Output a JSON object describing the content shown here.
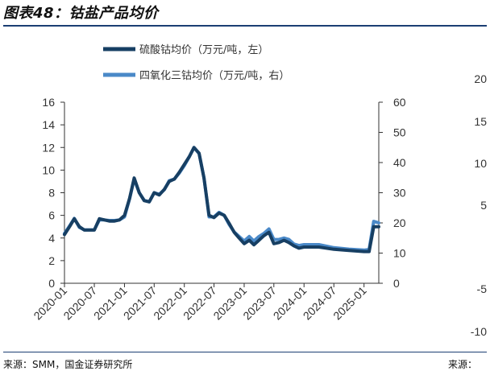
{
  "header": {
    "title": "图表48：钴盐产品均价"
  },
  "footer": {
    "source": "来源：SMM，国金证券研究所",
    "source_right": "来源："
  },
  "stray_axis": {
    "ticks": [
      "20",
      "15",
      "10",
      "5",
      "-5",
      "-10"
    ]
  },
  "chart_data": {
    "type": "line",
    "title": "",
    "legend": {
      "placement": "top-center"
    },
    "grid": false,
    "x_ticks": [
      "2020-01",
      "2020-07",
      "2021-01",
      "2021-07",
      "2022-01",
      "2022-07",
      "2023-01",
      "2023-07",
      "2024-01",
      "2024-07",
      "2025-01"
    ],
    "y_left": {
      "ticks": [
        "0",
        "2",
        "4",
        "6",
        "8",
        "10",
        "12",
        "14",
        "16"
      ],
      "ylim": [
        0,
        16
      ]
    },
    "y_right": {
      "ticks": [
        "0",
        "10",
        "20",
        "30",
        "40",
        "50",
        "60"
      ],
      "ylim": [
        0,
        60
      ]
    },
    "series": [
      {
        "name": "硫酸钴均价（万元/吨，左）",
        "axis": "left",
        "color": "#173f63",
        "points": [
          [
            "2020-01-01",
            4.3
          ],
          [
            "2020-02-01",
            5.0
          ],
          [
            "2020-03-01",
            5.7
          ],
          [
            "2020-04-01",
            5.0
          ],
          [
            "2020-05-01",
            4.7
          ],
          [
            "2020-06-01",
            4.7
          ],
          [
            "2020-07-01",
            4.7
          ],
          [
            "2020-08-01",
            5.7
          ],
          [
            "2020-09-01",
            5.6
          ],
          [
            "2020-10-01",
            5.5
          ],
          [
            "2020-11-01",
            5.5
          ],
          [
            "2020-12-01",
            5.6
          ],
          [
            "2021-01-01",
            6.0
          ],
          [
            "2021-02-01",
            7.5
          ],
          [
            "2021-03-01",
            9.3
          ],
          [
            "2021-04-01",
            8.0
          ],
          [
            "2021-05-01",
            7.3
          ],
          [
            "2021-06-01",
            7.2
          ],
          [
            "2021-07-01",
            8.0
          ],
          [
            "2021-08-01",
            7.8
          ],
          [
            "2021-09-01",
            8.3
          ],
          [
            "2021-10-01",
            9.0
          ],
          [
            "2021-11-01",
            9.2
          ],
          [
            "2021-12-01",
            9.8
          ],
          [
            "2022-01-01",
            10.5
          ],
          [
            "2022-02-01",
            11.2
          ],
          [
            "2022-03-01",
            12.0
          ],
          [
            "2022-04-01",
            11.5
          ],
          [
            "2022-05-01",
            9.3
          ],
          [
            "2022-06-01",
            6.0
          ],
          [
            "2022-07-01",
            5.8
          ],
          [
            "2022-08-01",
            6.2
          ],
          [
            "2022-09-01",
            6.0
          ],
          [
            "2022-10-01",
            5.3
          ],
          [
            "2022-11-01",
            4.5
          ],
          [
            "2022-12-01",
            4.0
          ],
          [
            "2023-01-01",
            3.5
          ],
          [
            "2023-02-01",
            3.8
          ],
          [
            "2023-03-01",
            3.4
          ],
          [
            "2023-04-01",
            3.8
          ],
          [
            "2023-05-01",
            4.2
          ],
          [
            "2023-06-01",
            4.5
          ],
          [
            "2023-07-01",
            3.5
          ],
          [
            "2023-08-01",
            3.6
          ],
          [
            "2023-09-01",
            3.8
          ],
          [
            "2023-10-01",
            3.6
          ],
          [
            "2023-11-01",
            3.3
          ],
          [
            "2023-12-01",
            3.1
          ],
          [
            "2024-01-01",
            3.2
          ],
          [
            "2024-04-01",
            3.2
          ],
          [
            "2024-07-01",
            3.0
          ],
          [
            "2024-10-01",
            2.9
          ],
          [
            "2025-01-01",
            2.8
          ],
          [
            "2025-02-01",
            2.8
          ],
          [
            "2025-03-01",
            5.0
          ],
          [
            "2025-04-01",
            5.0
          ]
        ]
      },
      {
        "name": "四氧化三钴均价（万元/吨，右）",
        "axis": "right",
        "color": "#4a89c8",
        "points": [
          [
            "2020-01-01",
            16.5
          ],
          [
            "2020-02-01",
            19.0
          ],
          [
            "2020-03-01",
            21.5
          ],
          [
            "2020-04-01",
            18.5
          ],
          [
            "2020-05-01",
            17.7
          ],
          [
            "2020-06-01",
            17.7
          ],
          [
            "2020-07-01",
            17.7
          ],
          [
            "2020-08-01",
            21.0
          ],
          [
            "2020-09-01",
            21.0
          ],
          [
            "2020-10-01",
            20.8
          ],
          [
            "2020-11-01",
            20.8
          ],
          [
            "2020-12-01",
            21.0
          ],
          [
            "2021-01-01",
            22.0
          ],
          [
            "2021-02-01",
            28.0
          ],
          [
            "2021-03-01",
            34.5
          ],
          [
            "2021-04-01",
            30.0
          ],
          [
            "2021-05-01",
            27.5
          ],
          [
            "2021-06-01",
            27.0
          ],
          [
            "2021-07-01",
            30.0
          ],
          [
            "2021-08-01",
            29.5
          ],
          [
            "2021-09-01",
            31.0
          ],
          [
            "2021-10-01",
            34.0
          ],
          [
            "2021-11-01",
            34.5
          ],
          [
            "2021-12-01",
            36.5
          ],
          [
            "2022-01-01",
            39.0
          ],
          [
            "2022-02-01",
            42.0
          ],
          [
            "2022-03-01",
            45.0
          ],
          [
            "2022-04-01",
            43.0
          ],
          [
            "2022-05-01",
            35.0
          ],
          [
            "2022-06-01",
            22.0
          ],
          [
            "2022-07-01",
            22.0
          ],
          [
            "2022-08-01",
            23.5
          ],
          [
            "2022-09-01",
            22.5
          ],
          [
            "2022-10-01",
            19.5
          ],
          [
            "2022-11-01",
            17.0
          ],
          [
            "2022-12-01",
            15.5
          ],
          [
            "2023-01-01",
            14.0
          ],
          [
            "2023-02-01",
            15.5
          ],
          [
            "2023-03-01",
            14.0
          ],
          [
            "2023-04-01",
            15.5
          ],
          [
            "2023-05-01",
            16.5
          ],
          [
            "2023-06-01",
            18.0
          ],
          [
            "2023-07-01",
            14.5
          ],
          [
            "2023-08-01",
            14.5
          ],
          [
            "2023-09-01",
            15.0
          ],
          [
            "2023-10-01",
            14.5
          ],
          [
            "2023-11-01",
            13.0
          ],
          [
            "2023-12-01",
            12.5
          ],
          [
            "2024-01-01",
            12.8
          ],
          [
            "2024-04-01",
            12.8
          ],
          [
            "2024-07-01",
            11.8
          ],
          [
            "2024-10-01",
            11.3
          ],
          [
            "2025-01-01",
            11.0
          ],
          [
            "2025-02-01",
            11.2
          ],
          [
            "2025-03-01",
            20.5
          ],
          [
            "2025-04-01",
            20.0
          ]
        ]
      }
    ]
  }
}
